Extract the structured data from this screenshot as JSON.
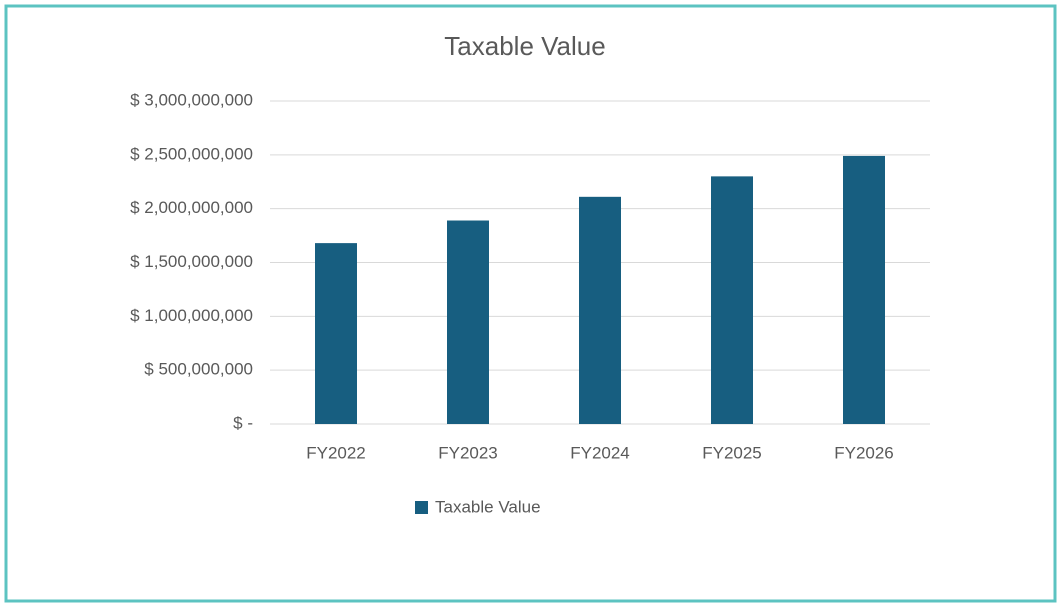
{
  "chart_data": {
    "type": "bar",
    "title": "Taxable Value",
    "categories": [
      "FY2022",
      "FY2023",
      "FY2024",
      "FY2025",
      "FY2026"
    ],
    "series": [
      {
        "name": "Taxable Value",
        "color": "#175e80",
        "values": [
          1680000000,
          1890000000,
          2110000000,
          2300000000,
          2490000000
        ]
      }
    ],
    "ylim": [
      0,
      3000000000
    ],
    "yticks": [
      {
        "value": 0,
        "label": "$ -"
      },
      {
        "value": 500000000,
        "label": "$ 500,000,000"
      },
      {
        "value": 1000000000,
        "label": "$ 1,000,000,000"
      },
      {
        "value": 1500000000,
        "label": "$ 1,500,000,000"
      },
      {
        "value": 2000000000,
        "label": "$ 2,000,000,000"
      },
      {
        "value": 2500000000,
        "label": "$ 2,500,000,000"
      },
      {
        "value": 3000000000,
        "label": "$ 3,000,000,000"
      }
    ],
    "grid": true,
    "legend": "bottom"
  }
}
